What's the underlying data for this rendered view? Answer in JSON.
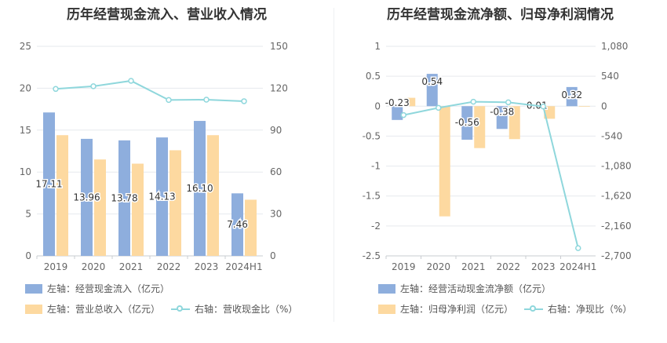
{
  "chart_data": [
    {
      "type": "bar",
      "title": "历年经营现金流入、营业收入情况",
      "categories": [
        "2019",
        "2020",
        "2021",
        "2022",
        "2023",
        "2024H1"
      ],
      "y_left": {
        "lim": [
          0,
          25
        ],
        "ticks": [
          "0",
          "5",
          "10",
          "15",
          "20",
          "25"
        ]
      },
      "y_right": {
        "lim": [
          0,
          150
        ],
        "ticks": [
          "0",
          "30",
          "60",
          "90",
          "120",
          "150"
        ]
      },
      "series": [
        {
          "name": "左轴：经营现金流入（亿元）",
          "kind": "bar",
          "axis": "left",
          "color": "#8eaedd",
          "values": [
            17.11,
            13.96,
            13.78,
            14.13,
            16.1,
            7.46
          ],
          "labels": [
            "17.11",
            "13.96",
            "13.78",
            "14.13",
            "16.10",
            "7.46"
          ]
        },
        {
          "name": "左轴：营业总收入（亿元）",
          "kind": "bar",
          "axis": "left",
          "color": "#fdd9a0",
          "values": [
            14.4,
            11.5,
            11.0,
            12.6,
            14.4,
            6.7
          ]
        },
        {
          "name": "右轴：营收现金比（%）",
          "kind": "line",
          "axis": "right",
          "color": "#8fd7dc",
          "values": [
            119.5,
            121.4,
            125.3,
            111.6,
            111.8,
            110.7
          ]
        }
      ],
      "legend_position": "bottom-left",
      "grid": true
    },
    {
      "type": "bar",
      "title": "历年经营现金流净额、归母净利润情况",
      "categories": [
        "2019",
        "2020",
        "2021",
        "2022",
        "2023",
        "2024H1"
      ],
      "y_left": {
        "lim": [
          -2.5,
          1
        ],
        "ticks": [
          "-2.5",
          "-2",
          "-1.5",
          "-1",
          "-0.5",
          "0",
          "0.5",
          "1"
        ]
      },
      "y_right": {
        "lim": [
          -2700,
          1080
        ],
        "ticks": [
          "-2,700",
          "-2,160",
          "-1,620",
          "-1,080",
          "-540",
          "0",
          "540",
          "1,080"
        ]
      },
      "series": [
        {
          "name": "左轴：经营活动现金流净额（亿元）",
          "kind": "bar",
          "axis": "left",
          "color": "#8eaedd",
          "values": [
            -0.23,
            0.54,
            -0.56,
            -0.38,
            0.01,
            0.32
          ],
          "labels": [
            "-0.23",
            "0.54",
            "-0.56",
            "-0.38",
            "0.01",
            "0.32"
          ]
        },
        {
          "name": "左轴：归母净利润（亿元）",
          "kind": "bar",
          "axis": "left",
          "color": "#fdd9a0",
          "values": [
            0.14,
            -1.84,
            -0.7,
            -0.55,
            -0.21,
            -0.01
          ]
        },
        {
          "name": "右轴：净现比（%）",
          "kind": "line",
          "axis": "right",
          "color": "#8fd7dc",
          "values": [
            -160,
            -30,
            80,
            70,
            -5,
            -2560
          ]
        }
      ],
      "legend_position": "bottom-left",
      "grid": true
    }
  ]
}
